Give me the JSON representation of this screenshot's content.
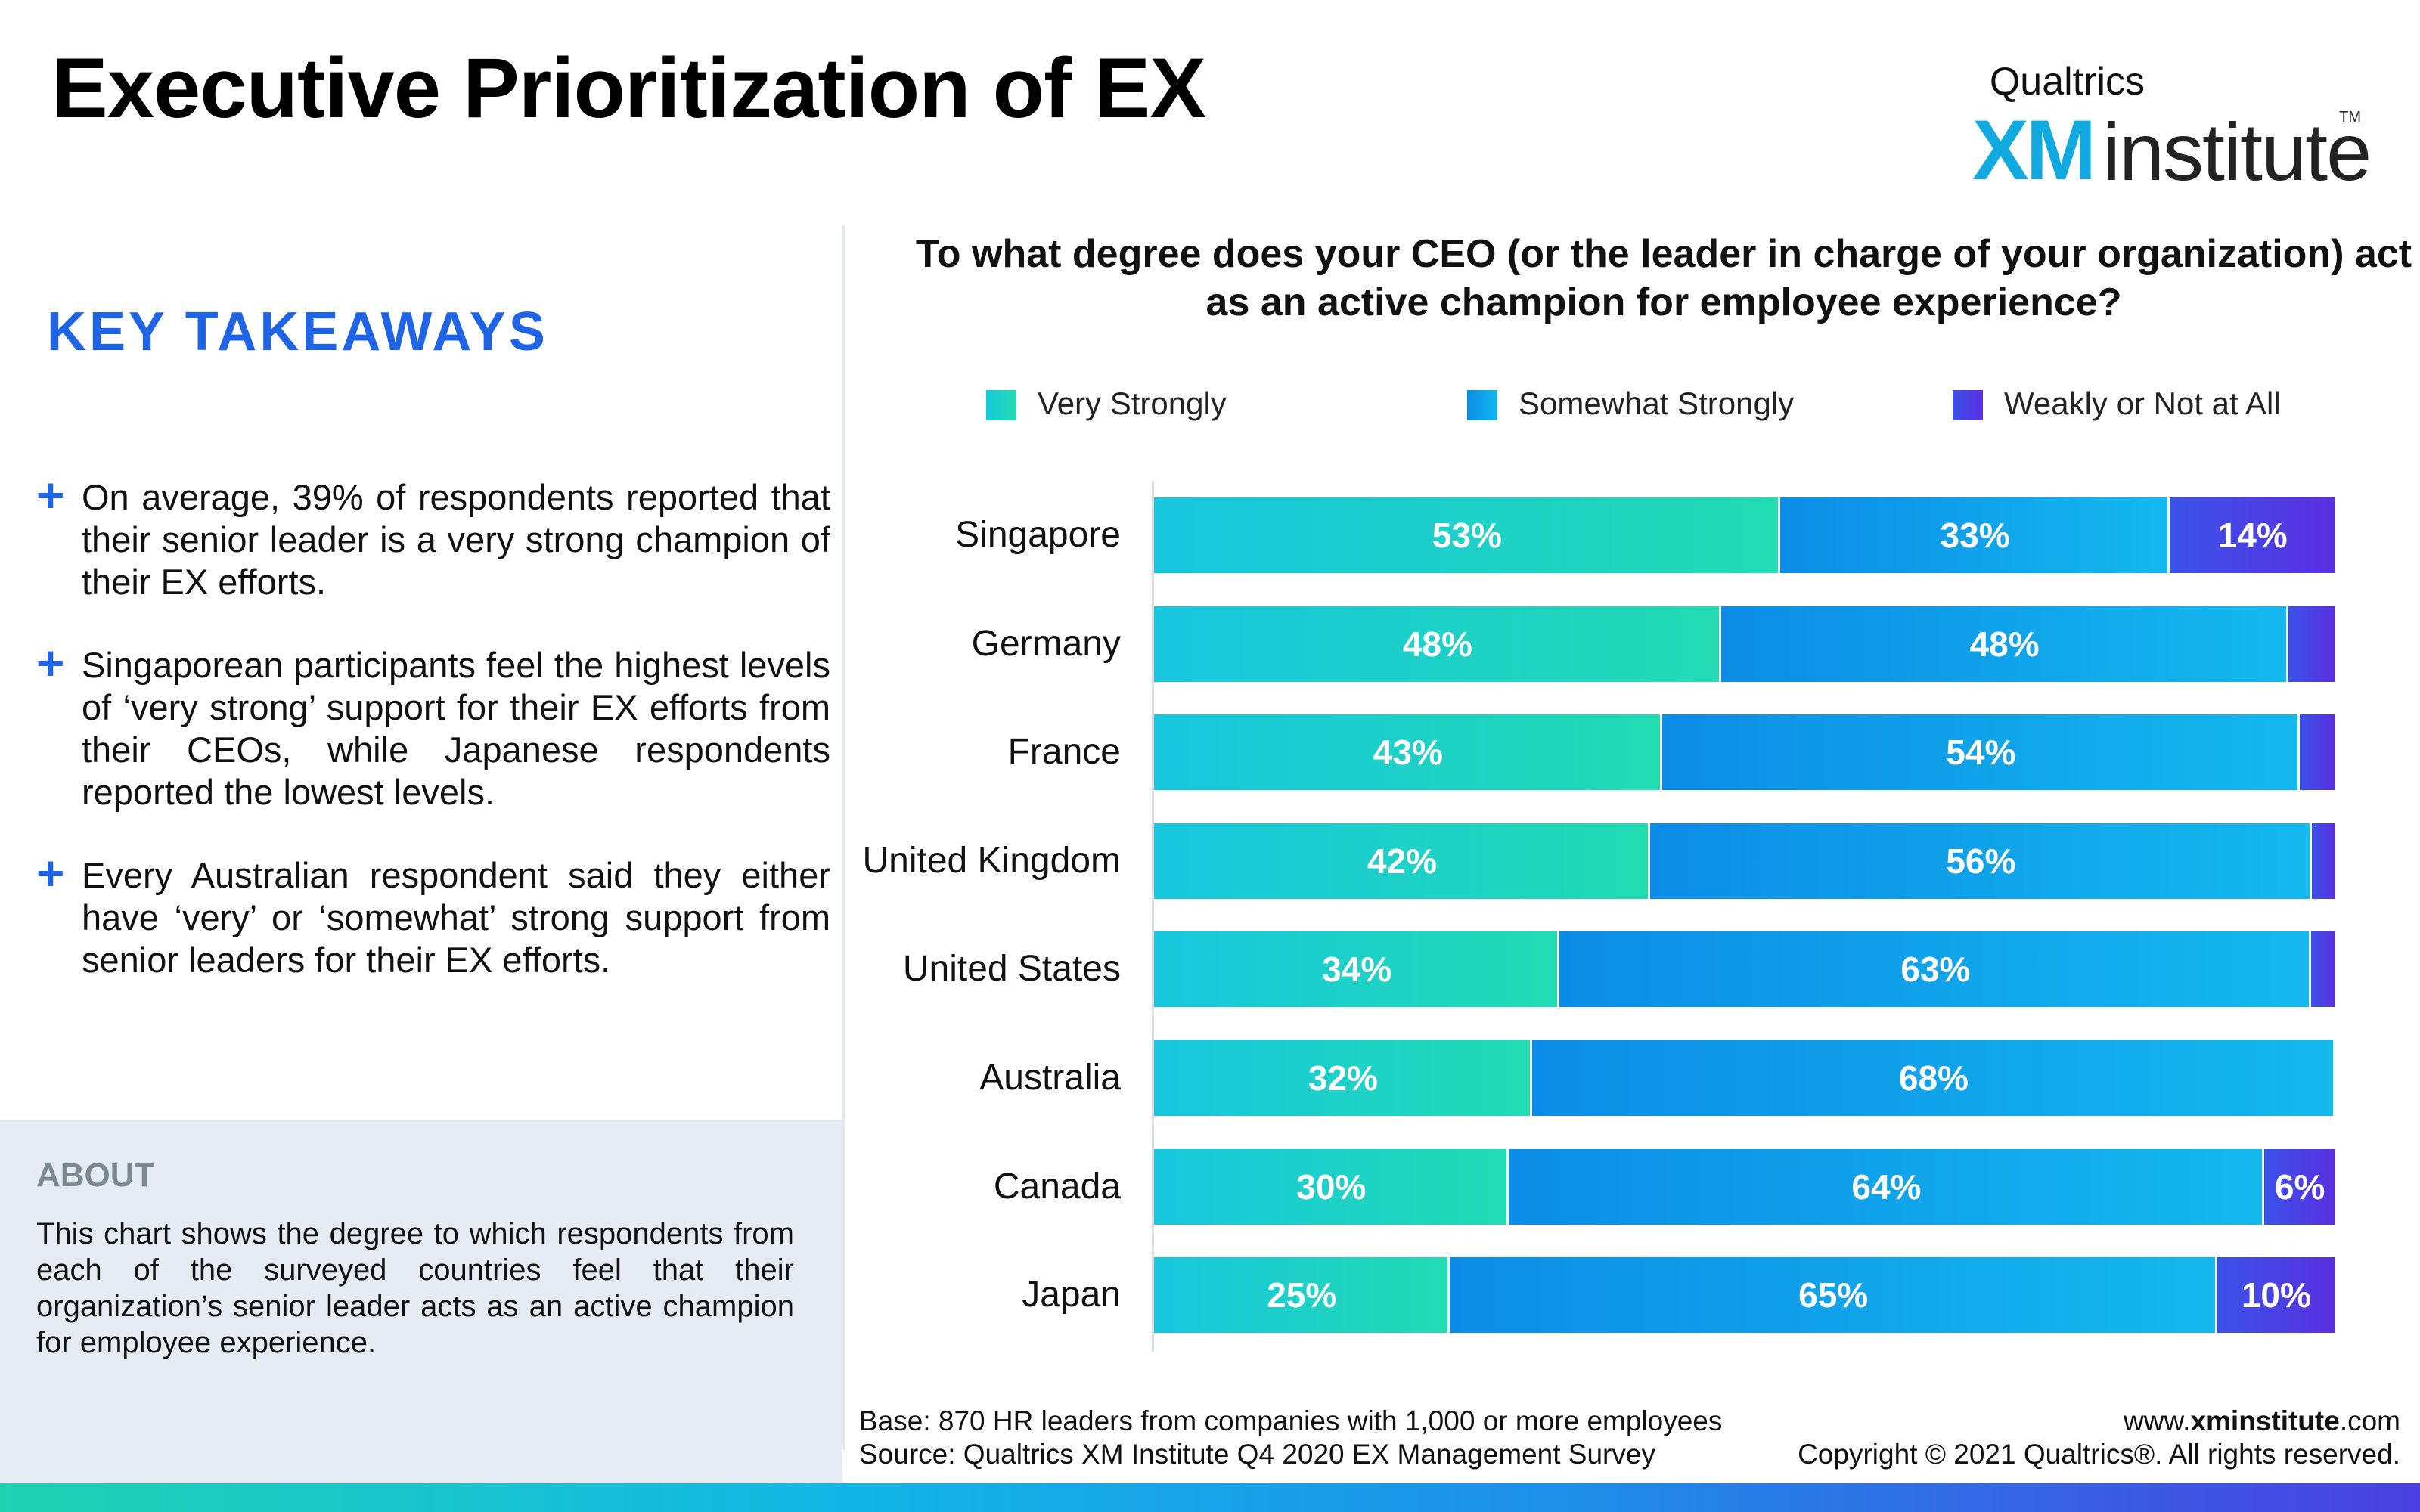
{
  "header": {
    "title": "Executive Prioritization of EX"
  },
  "logo": {
    "brand": "Qualtrics",
    "mark": "XM",
    "word": "institute",
    "tm": "TM"
  },
  "takeaways": {
    "heading": "KEY TAKEAWAYS",
    "items": [
      "On average, 39% of respondents reported that their senior leader is a very strong champion of their EX efforts.",
      "Singaporean participants feel the highest levels of ‘very strong’ support for their EX efforts from their CEOs, while Japanese respondents reported the lowest levels.",
      "Every Australian respondent said they either have ‘very’ or ‘somewhat’ strong support from senior leaders for their EX efforts."
    ]
  },
  "about": {
    "heading": "ABOUT",
    "text": "This chart shows the degree to which respondents from each of the surveyed countries feel that their organization’s senior leader acts as an active champion for employee experience."
  },
  "colors": {
    "very": "#1ccdd6",
    "somewhat": "#0a9be8",
    "weak": "#4a36e6",
    "accent": "#1f63e6"
  },
  "chart_data": {
    "type": "bar",
    "orientation": "horizontal",
    "stacked": true,
    "title": "To what degree does your CEO (or the leader in charge of your organization) act as an active champion for employee experience?",
    "categories": [
      "Singapore",
      "Germany",
      "France",
      "United Kingdom",
      "United States",
      "Australia",
      "Canada",
      "Japan"
    ],
    "series": [
      {
        "name": "Very Strongly",
        "values": [
          53,
          48,
          43,
          42,
          34,
          32,
          30,
          25
        ],
        "labels": [
          "53%",
          "48%",
          "43%",
          "42%",
          "34%",
          "32%",
          "30%",
          "25%"
        ]
      },
      {
        "name": "Somewhat Strongly",
        "values": [
          33,
          48,
          54,
          56,
          63,
          68,
          64,
          65
        ],
        "labels": [
          "33%",
          "48%",
          "54%",
          "56%",
          "63%",
          "68%",
          "64%",
          "65%"
        ]
      },
      {
        "name": "Weakly or Not at All",
        "values": [
          14,
          4,
          3,
          2,
          2,
          0,
          6,
          10
        ],
        "labels": [
          "14%",
          "",
          "",
          "",
          "",
          "",
          "6%",
          "10%"
        ]
      }
    ],
    "xlim": [
      0,
      100
    ],
    "legend_position": "top"
  },
  "footer": {
    "base": "Base: 870 HR leaders from companies with 1,000 or more employees",
    "source": "Source: Qualtrics XM Institute Q4 2020  EX Management Survey",
    "url_prefix": "www.",
    "url_bold": "xminstitute",
    "url_suffix": ".com",
    "copyright": "Copyright © 2021 Qualtrics®. All rights reserved."
  }
}
